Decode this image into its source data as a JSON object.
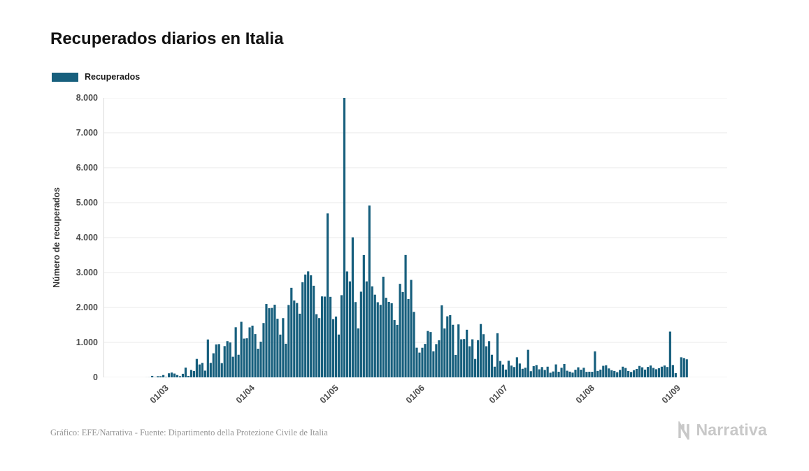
{
  "title": "Recuperados diarios en Italia",
  "legend": {
    "label": "Recuperados"
  },
  "footer": {
    "source": "Gráfico: EFE/Narrativa - Fuente: Dipartimento della Protezione Civile de Italia",
    "brand": "Narrativa"
  },
  "colors": {
    "bar": "#175F7D",
    "grid": "#e8e8e8",
    "axis_text": "#4d4d4d",
    "title_text": "#111111",
    "footer_text": "#959595",
    "brand_text": "#c8c8c8"
  },
  "chart_data": {
    "type": "bar",
    "title": "Recuperados diarios en Italia",
    "xlabel": "",
    "ylabel": "Número de recuperados",
    "series_name": "Recuperados",
    "grid": true,
    "legend_position": "top-left",
    "ylim": [
      0,
      8000
    ],
    "y_ticks": [
      0,
      1000,
      2000,
      3000,
      4000,
      5000,
      6000,
      7000,
      8000
    ],
    "y_tick_labels": [
      "0",
      "1.000",
      "2.000",
      "3.000",
      "4.000",
      "5.000",
      "6.000",
      "7.000",
      "8.000"
    ],
    "x_domain": [
      "2020-02-10",
      "2020-09-21"
    ],
    "x_ticks": [
      {
        "label": "01/03",
        "date": "2020-03-01"
      },
      {
        "label": "01/04",
        "date": "2020-04-01"
      },
      {
        "label": "01/05",
        "date": "2020-05-01"
      },
      {
        "label": "01/06",
        "date": "2020-06-01"
      },
      {
        "label": "01/07",
        "date": "2020-07-01"
      },
      {
        "label": "01/08",
        "date": "2020-08-01"
      },
      {
        "label": "01/09",
        "date": "2020-09-01"
      }
    ],
    "start_date": "2020-02-24",
    "values": [
      0,
      1,
      2,
      42,
      5,
      33,
      33,
      66,
      11,
      116,
      138,
      109,
      66,
      33,
      102,
      280,
      41,
      213,
      181,
      527,
      369,
      414,
      192,
      1084,
      415,
      689,
      943,
      952,
      408,
      894,
      1036,
      999,
      589,
      1434,
      646,
      1590,
      1109,
      1118,
      1431,
      1480,
      1238,
      819,
      1022,
      1555,
      2099,
      1979,
      1985,
      2079,
      1677,
      1224,
      1695,
      962,
      2072,
      2563,
      2200,
      2128,
      1822,
      2723,
      2943,
      3033,
      2922,
      2622,
      1808,
      1696,
      2317,
      2311,
      4693,
      2304,
      1665,
      1740,
      1225,
      2352,
      8014,
      3031,
      2747,
      4008,
      2155,
      1401,
      2452,
      3502,
      2747,
      4917,
      2605,
      2366,
      2150,
      2075,
      2881,
      2278,
      2160,
      2120,
      1639,
      1502,
      2677,
      2443,
      3503,
      2240,
      2789,
      1874,
      848,
      708,
      846,
      957,
      1327,
      1297,
      747,
      952,
      1062,
      2062,
      1399,
      1747,
      1780,
      1505,
      640,
      1516,
      1089,
      1096,
      1363,
      890,
      1089,
      526,
      1064,
      1526,
      1235,
      890,
      1035,
      646,
      305,
      1263,
      469,
      366,
      223,
      477,
      338,
      295,
      574,
      396,
      245,
      276,
      788,
      176,
      322,
      352,
      230,
      295,
      213,
      305,
      132,
      168,
      370,
      161,
      275,
      380,
      190,
      163,
      136,
      218,
      288,
      219,
      275,
      157,
      161,
      159,
      745,
      183,
      222,
      330,
      347,
      255,
      204,
      183,
      148,
      213,
      305,
      268,
      182,
      154,
      206,
      240,
      326,
      288,
      222,
      298,
      340,
      270,
      232,
      263,
      305,
      340,
      296,
      1310,
      353,
      120,
      0,
      574,
      552,
      516
    ]
  }
}
